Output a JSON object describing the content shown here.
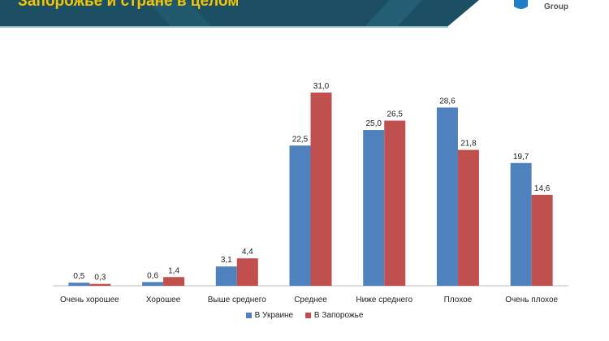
{
  "header": {
    "title": "Запорожье и стране в целом",
    "logo_text": "Group"
  },
  "chart_data": {
    "type": "bar",
    "categories": [
      "Очень хорошее",
      "Хорошее",
      "Выше среднего",
      "Среднее",
      "Ниже среднего",
      "Плохое",
      "Очень плохое"
    ],
    "series": [
      {
        "name": "В Украине",
        "color": "#4f81bd",
        "values": [
          0.5,
          0.6,
          3.1,
          22.5,
          25.0,
          28.6,
          19.7
        ]
      },
      {
        "name": "В Запорожье",
        "color": "#c0504d",
        "values": [
          0.3,
          1.4,
          4.4,
          31.0,
          26.5,
          21.8,
          14.6
        ]
      }
    ],
    "ylim": [
      0,
      31
    ],
    "grid": false,
    "legend": "bottom",
    "decimal_separator": ","
  }
}
